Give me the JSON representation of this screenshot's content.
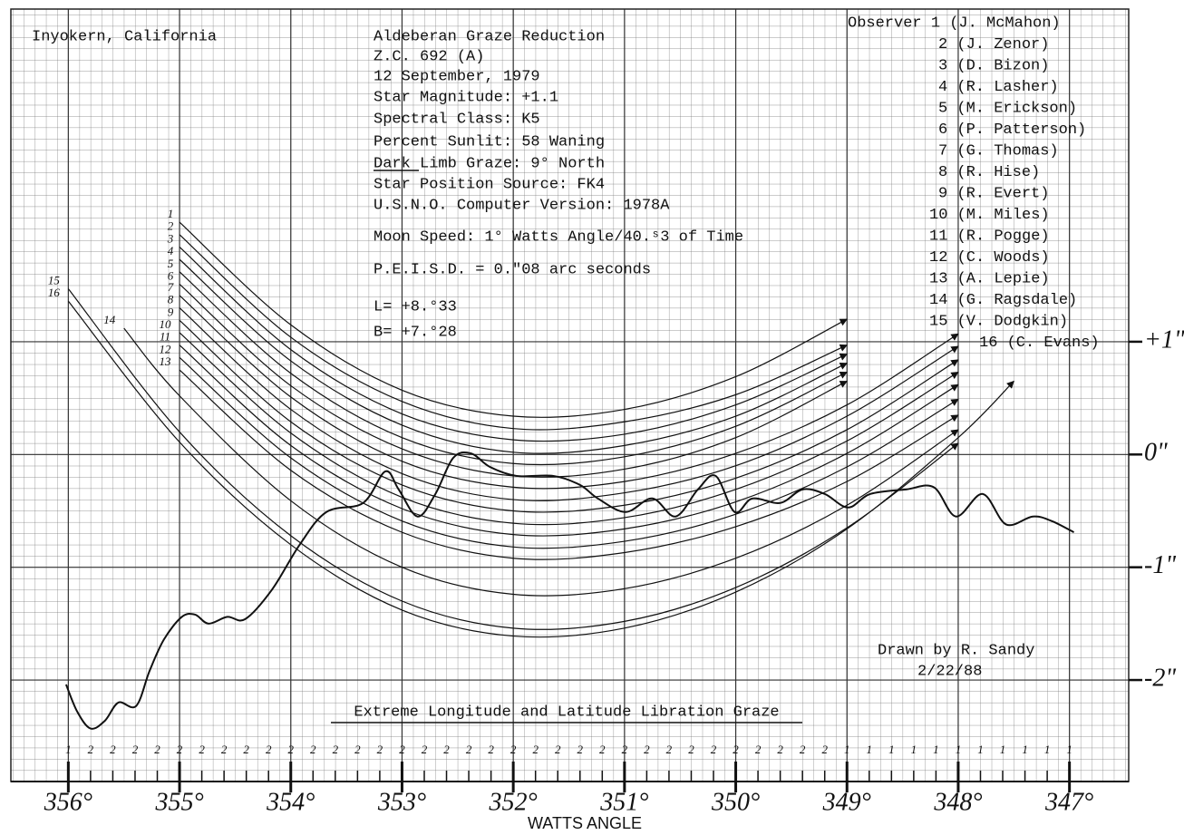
{
  "chart_data": {
    "type": "line",
    "location": "Inyokern, California",
    "notes": [
      "Aldeberan Graze Reduction",
      "Z.C. 692 (A)",
      "12 September, 1979",
      "Star Magnitude: +1.1",
      "Spectral Class: K5",
      "Percent Sunlit: 58 Waning",
      "Dark  Limb Graze: 9° North",
      "Star Position Source: FK4",
      "U.S.N.O. Computer Version: 1978A",
      "Moon Speed: 1° Watts Angle/40.ˢ3 of Time",
      "P.E.I.S.D. = 0.″08 arc seconds",
      "L= +8.°33",
      "B= +7.°28"
    ],
    "credit": [
      "Drawn by R. Sandy",
      "2/22/88"
    ],
    "title": "Extreme Longitude and Latitude Libration Graze",
    "x_label": "WATTS ANGLE",
    "xlim": [
      356.5,
      346.5
    ],
    "ylim": [
      -2.9,
      3.95
    ],
    "xticks": [
      {
        "value": 356,
        "label": "356°"
      },
      {
        "value": 355,
        "label": "355°"
      },
      {
        "value": 354,
        "label": "354°"
      },
      {
        "value": 353,
        "label": "353°"
      },
      {
        "value": 352,
        "label": "352°"
      },
      {
        "value": 351,
        "label": "351°"
      },
      {
        "value": 350,
        "label": "350°"
      },
      {
        "value": 349,
        "label": "349°"
      },
      {
        "value": 348,
        "label": "348°"
      },
      {
        "value": 347,
        "label": "347°"
      }
    ],
    "yticks": [
      {
        "value": 1,
        "label": "+1\""
      },
      {
        "value": 0,
        "label": "0\""
      },
      {
        "value": -1,
        "label": "-1\""
      },
      {
        "value": -2,
        "label": "-2\""
      }
    ],
    "grid": true,
    "line_color": "#111111",
    "series": [
      {
        "name": "Observer 1 (J. McMahon)",
        "label": "1",
        "x": [
          355,
          354,
          353,
          352,
          351,
          350,
          349
        ],
        "values": [
          2.06,
          1.15,
          0.57,
          0.34,
          0.4,
          0.69,
          1.2
        ]
      },
      {
        "name": "2 (J. Zenor)",
        "label": "2",
        "x": [
          355,
          354,
          353,
          352,
          351,
          350,
          349
        ],
        "values": [
          1.95,
          1.04,
          0.47,
          0.23,
          0.29,
          0.53,
          0.97
        ]
      },
      {
        "name": "3 (D. Bizon)",
        "label": "3",
        "x": [
          355,
          354,
          353,
          352,
          351,
          350,
          349
        ],
        "values": [
          1.84,
          0.93,
          0.36,
          0.13,
          0.18,
          0.44,
          0.89
        ]
      },
      {
        "name": "4 (R. Lasher)",
        "label": "4",
        "x": [
          355,
          354,
          353,
          352,
          351,
          350,
          349
        ],
        "values": [
          1.73,
          0.83,
          0.26,
          0.02,
          0.08,
          0.34,
          0.81
        ]
      },
      {
        "name": "5 (M. Erickson)",
        "label": "5",
        "x": [
          355,
          354,
          353,
          352,
          351,
          350,
          349
        ],
        "values": [
          1.62,
          0.72,
          0.15,
          -0.08,
          -0.02,
          0.25,
          0.73
        ]
      },
      {
        "name": "6 (P. Patterson)",
        "label": "6",
        "x": [
          355,
          354,
          353,
          352,
          351,
          350,
          349
        ],
        "values": [
          1.51,
          0.61,
          0.05,
          -0.19,
          -0.13,
          0.15,
          0.65
        ]
      },
      {
        "name": "7 (G. Thomas)",
        "label": "7",
        "x": [
          355,
          354,
          353,
          352,
          351,
          350,
          349,
          348
        ],
        "values": [
          1.41,
          0.51,
          -0.06,
          -0.29,
          -0.24,
          0.01,
          0.44,
          1.07
        ]
      },
      {
        "name": "8 (R. Hise)",
        "label": "8",
        "x": [
          355,
          354,
          353,
          352,
          351,
          350,
          349,
          348
        ],
        "values": [
          1.3,
          0.4,
          -0.17,
          -0.4,
          -0.34,
          -0.1,
          0.34,
          0.96
        ]
      },
      {
        "name": "9 (R. Evert)",
        "label": "9",
        "x": [
          355,
          354,
          353,
          352,
          351,
          350,
          349,
          348
        ],
        "values": [
          1.19,
          0.29,
          -0.27,
          -0.5,
          -0.45,
          -0.21,
          0.22,
          0.84
        ]
      },
      {
        "name": "10 (M. Miles)",
        "label": "10",
        "x": [
          355,
          354,
          353,
          352,
          351,
          350,
          349,
          348
        ],
        "values": [
          1.08,
          0.19,
          -0.38,
          -0.61,
          -0.56,
          -0.31,
          0.12,
          0.73
        ]
      },
      {
        "name": "11 (R. Pogge)",
        "label": "11",
        "x": [
          355,
          354,
          353,
          352,
          351,
          350,
          349,
          348
        ],
        "values": [
          0.97,
          0.08,
          -0.48,
          -0.71,
          -0.66,
          -0.42,
          0.01,
          0.62
        ]
      },
      {
        "name": "12 (C. Woods)",
        "label": "12",
        "x": [
          355,
          354,
          353,
          352,
          351,
          350,
          349,
          348
        ],
        "values": [
          0.86,
          -0.03,
          -0.59,
          -0.82,
          -0.77,
          -0.53,
          -0.11,
          0.49
        ]
      },
      {
        "name": "13 (A. Lepie)",
        "label": "13",
        "x": [
          355,
          354,
          353,
          352,
          351,
          350,
          349,
          348
        ],
        "values": [
          0.75,
          -0.14,
          -0.69,
          -0.92,
          -0.87,
          -0.64,
          -0.24,
          0.35
        ]
      },
      {
        "name": "14 (G. Ragsdale)",
        "label": "14",
        "x": [
          355.5,
          355,
          354,
          353,
          352,
          351,
          350,
          349,
          348
        ],
        "values": [
          1.12,
          0.52,
          -0.41,
          -1.0,
          -1.24,
          -1.19,
          -0.92,
          -0.45,
          0.22
        ]
      },
      {
        "name": "15 (V. Dodgkin)",
        "label": "15",
        "x": [
          356,
          355,
          354,
          353,
          352,
          351,
          350,
          349,
          348
        ],
        "values": [
          1.47,
          0.2,
          -0.72,
          -1.3,
          -1.54,
          -1.48,
          -1.18,
          -0.65,
          0.1
        ]
      },
      {
        "name": "16 (C. Evans)",
        "label": "16",
        "x": [
          356,
          355,
          354,
          353,
          352,
          351,
          350,
          349,
          348,
          347.5
        ],
        "values": [
          1.36,
          0.11,
          -0.8,
          -1.38,
          -1.61,
          -1.54,
          -1.22,
          -0.66,
          0.15,
          0.65
        ]
      }
    ],
    "limb_profile": {
      "x": [
        356.02,
        355.92,
        355.8,
        355.67,
        355.55,
        355.39,
        355.27,
        355.14,
        354.98,
        354.86,
        354.74,
        354.57,
        354.41,
        354.17,
        353.92,
        353.68,
        353.35,
        353.15,
        353.03,
        352.86,
        352.7,
        352.54,
        352.38,
        352.21,
        351.97,
        351.64,
        351.4,
        351.24,
        350.99,
        350.75,
        350.54,
        350.34,
        350.18,
        350.01,
        349.85,
        349.6,
        349.4,
        349.2,
        348.99,
        348.79,
        348.47,
        348.22,
        348.02,
        347.78,
        347.57,
        347.33,
        347.16,
        346.96
      ],
      "values": [
        -2.04,
        -2.28,
        -2.43,
        -2.36,
        -2.2,
        -2.23,
        -1.92,
        -1.64,
        -1.44,
        -1.42,
        -1.5,
        -1.44,
        -1.46,
        -1.2,
        -0.8,
        -0.51,
        -0.43,
        -0.15,
        -0.31,
        -0.55,
        -0.35,
        -0.03,
        0.01,
        -0.11,
        -0.19,
        -0.19,
        -0.27,
        -0.39,
        -0.51,
        -0.39,
        -0.55,
        -0.31,
        -0.19,
        -0.51,
        -0.39,
        -0.43,
        -0.31,
        -0.35,
        -0.47,
        -0.35,
        -0.31,
        -0.29,
        -0.55,
        -0.35,
        -0.62,
        -0.55,
        -0.59,
        -0.69
      ]
    },
    "scale_row": {
      "x": [
        356,
        355.8,
        355.6,
        355.4,
        355.2,
        355,
        354.8,
        354.6,
        354.4,
        354.2,
        354,
        353.8,
        353.6,
        353.4,
        353.2,
        353,
        352.8,
        352.6,
        352.4,
        352.2,
        352,
        351.8,
        351.6,
        351.4,
        351.2,
        351,
        350.8,
        350.6,
        350.4,
        350.2,
        350,
        349.8,
        349.6,
        349.4,
        349.2,
        349,
        348.8,
        348.6,
        348.4,
        348.2,
        348,
        347.8,
        347.6,
        347.4,
        347.2,
        347
      ],
      "values": [
        1,
        2,
        2,
        2,
        2,
        2,
        2,
        2,
        2,
        2,
        2,
        2,
        2,
        2,
        2,
        2,
        2,
        2,
        2,
        2,
        2,
        2,
        2,
        2,
        2,
        2,
        2,
        2,
        2,
        2,
        2,
        2,
        2,
        2,
        2,
        1,
        1,
        1,
        1,
        1,
        1,
        1,
        1,
        1,
        1,
        1
      ]
    }
  }
}
